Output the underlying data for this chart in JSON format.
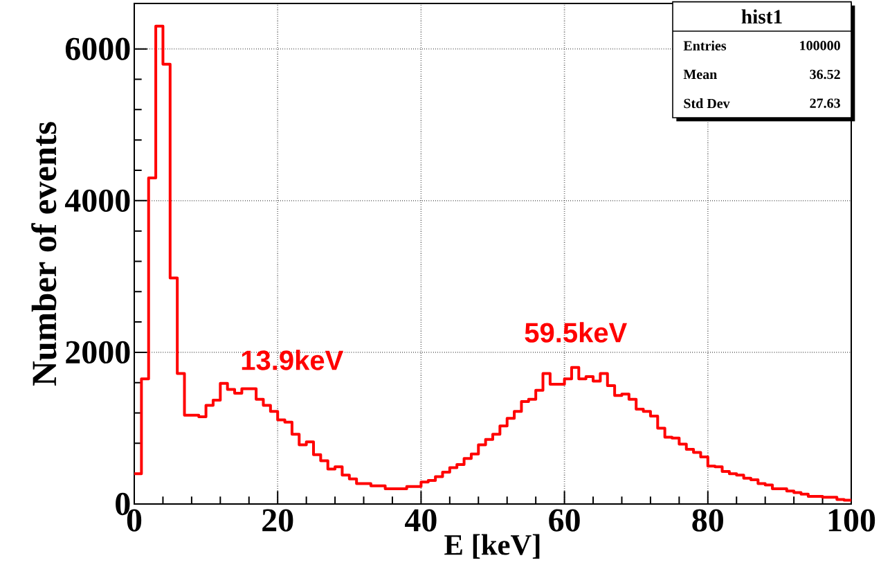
{
  "chart_data": {
    "type": "histogram",
    "xlabel": "E [keV]",
    "ylabel": "Number of events",
    "color": "#ff0000",
    "bins": [
      0,
      1,
      2,
      3,
      4,
      5,
      6,
      7,
      8,
      9,
      10,
      11,
      12,
      13,
      14,
      15,
      16,
      17,
      18,
      19,
      20,
      21,
      22,
      23,
      24,
      25,
      26,
      27,
      28,
      29,
      30,
      31,
      32,
      33,
      34,
      35,
      36,
      37,
      38,
      39,
      40,
      41,
      42,
      43,
      44,
      45,
      46,
      47,
      48,
      49,
      50,
      51,
      52,
      53,
      54,
      55,
      56,
      57,
      58,
      59,
      60,
      61,
      62,
      63,
      64,
      65,
      66,
      67,
      68,
      69,
      70,
      71,
      72,
      73,
      74,
      75,
      76,
      77,
      78,
      79,
      80,
      81,
      82,
      83,
      84,
      85,
      86,
      87,
      88,
      89,
      90,
      91,
      92,
      93,
      94,
      95,
      96,
      97,
      98,
      99,
      100
    ],
    "values": [
      400,
      1650,
      4300,
      6300,
      5800,
      2980,
      1720,
      1170,
      1170,
      1150,
      1300,
      1370,
      1590,
      1510,
      1460,
      1520,
      1520,
      1380,
      1300,
      1220,
      1110,
      1080,
      920,
      780,
      820,
      650,
      570,
      460,
      490,
      380,
      330,
      270,
      270,
      240,
      240,
      200,
      200,
      200,
      230,
      230,
      290,
      310,
      360,
      420,
      480,
      520,
      600,
      660,
      780,
      850,
      920,
      1030,
      1130,
      1220,
      1350,
      1380,
      1500,
      1720,
      1580,
      1580,
      1650,
      1800,
      1650,
      1680,
      1620,
      1720,
      1560,
      1430,
      1450,
      1380,
      1250,
      1220,
      1160,
      1000,
      880,
      870,
      790,
      720,
      680,
      620,
      500,
      490,
      430,
      400,
      380,
      340,
      320,
      270,
      250,
      200,
      200,
      170,
      150,
      130,
      100,
      100,
      90,
      90,
      60,
      50
    ],
    "xlim": [
      0,
      100
    ],
    "ylim": [
      0,
      6600
    ],
    "xticks": [
      0,
      20,
      40,
      60,
      80,
      100
    ],
    "yticks": [
      0,
      2000,
      4000,
      6000
    ],
    "grid": true,
    "annotations": [
      "13.9keV",
      "59.5keV",
      "hist1",
      "Entries",
      "100000",
      "Mean",
      "36.52",
      "Std Dev",
      "27.63"
    ]
  }
}
